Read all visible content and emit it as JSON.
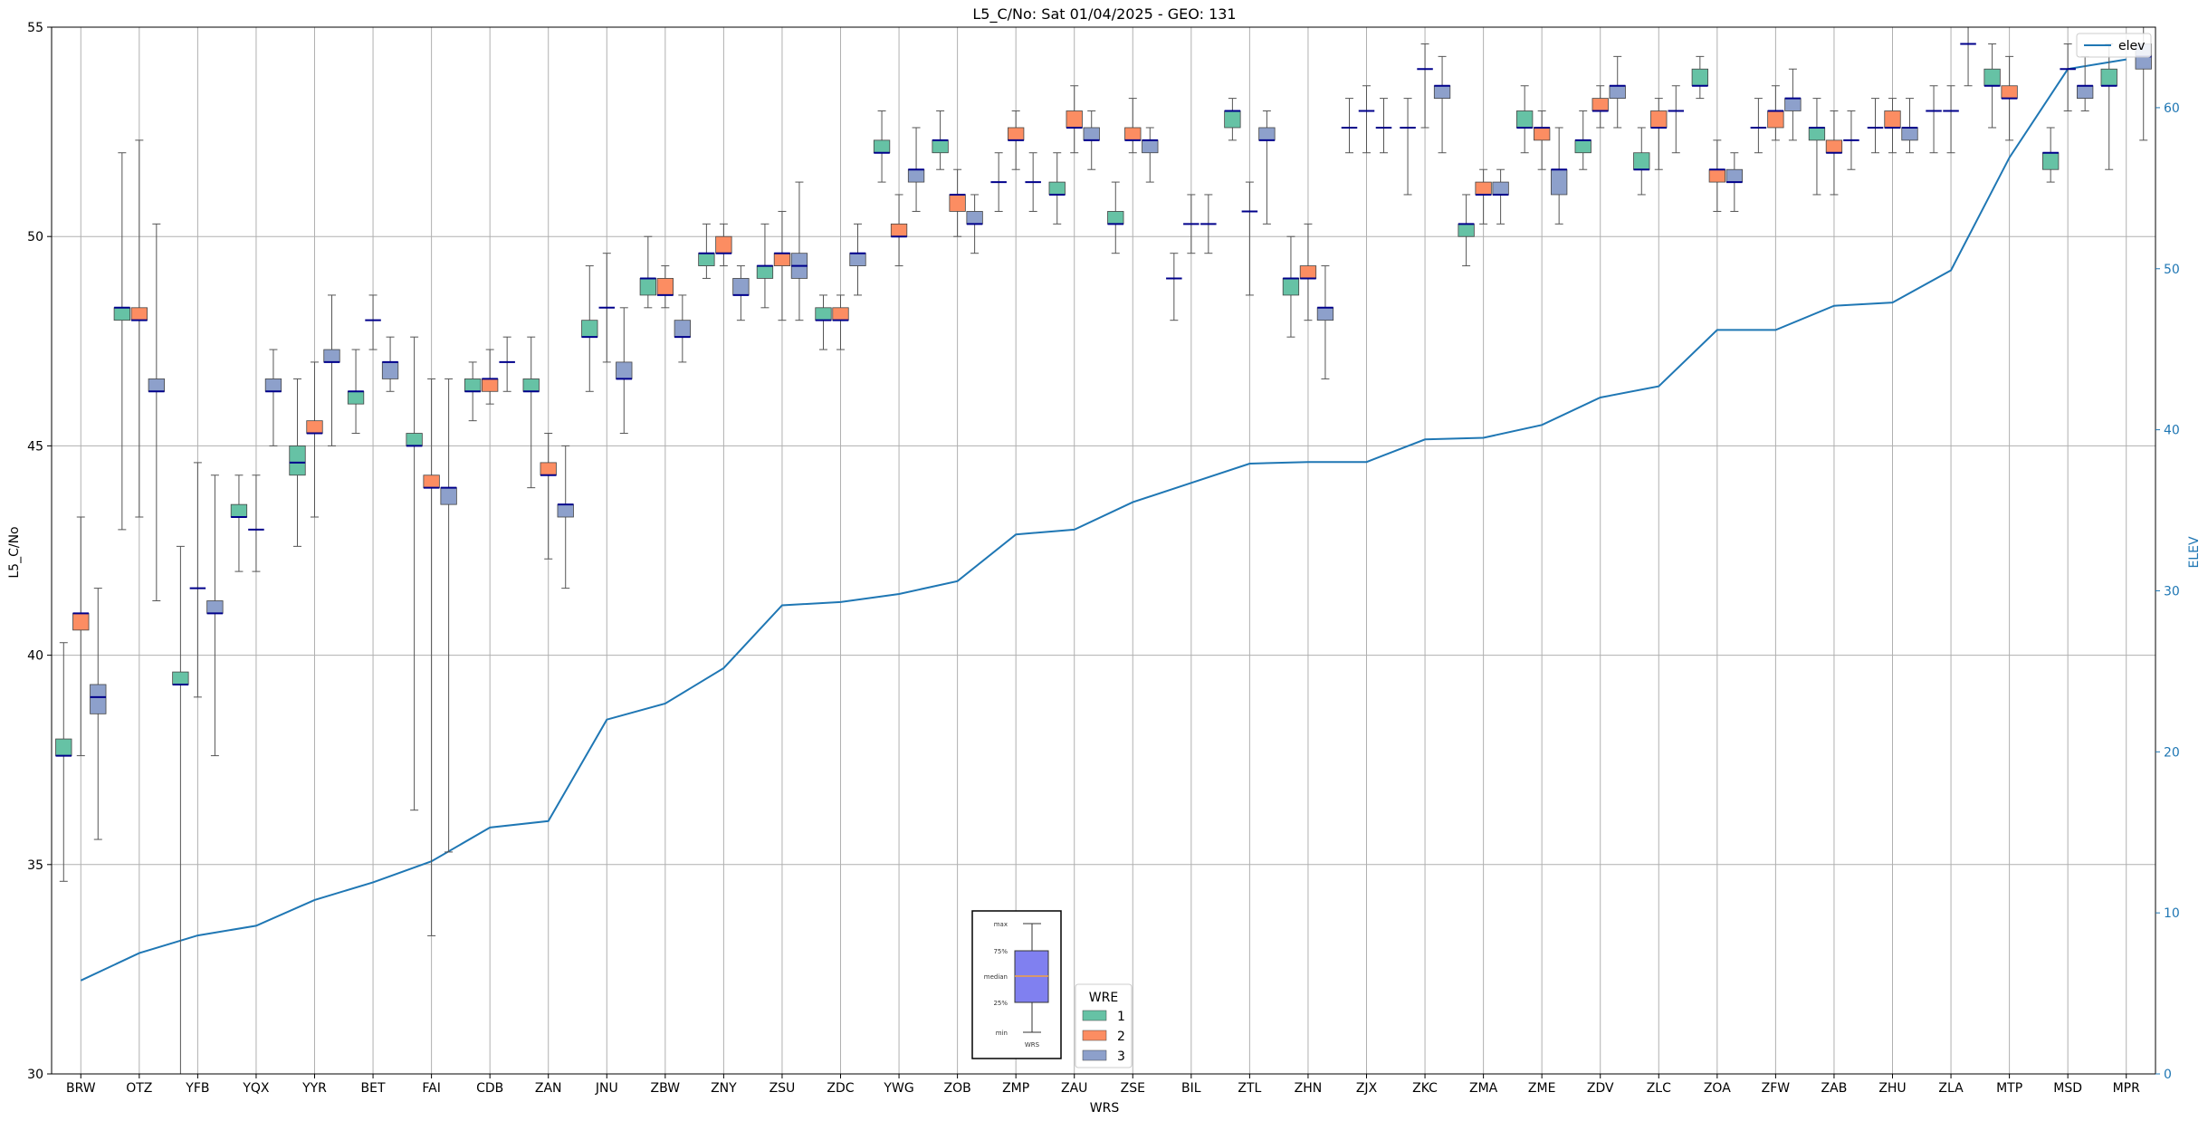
{
  "chart_data": {
    "type": "box",
    "title": "L5_C/No: Sat 01/04/2025 - GEO: 131",
    "xlabel": "WRS",
    "ylabel": "L5_C/No",
    "y2label": "ELEV",
    "ylim": [
      30,
      55
    ],
    "y2lim": [
      0,
      65
    ],
    "yticks": [
      30,
      35,
      40,
      45,
      50,
      55
    ],
    "y2ticks": [
      0,
      10,
      20,
      30,
      40,
      50,
      60
    ],
    "grid": true,
    "wre_colors": {
      "1": "#66c2a5",
      "2": "#fc8d62",
      "3": "#8da0cb"
    },
    "median_color": "#00008b",
    "elev_color": "#1f77b4",
    "legend_elev": {
      "label": "elev",
      "position": "top-right"
    },
    "legend_wre": {
      "title": "WRE",
      "labels": [
        "1",
        "2",
        "3"
      ],
      "position": "bottom-center"
    },
    "inset": {
      "labels": [
        "max",
        "75%",
        "median",
        "25%",
        "min"
      ],
      "xlabel": "WRS",
      "fill": "#8080f0"
    },
    "categories": [
      "BRW",
      "OTZ",
      "YFB",
      "YQX",
      "YYR",
      "BET",
      "FAI",
      "CDB",
      "ZAN",
      "JNU",
      "ZBW",
      "ZNY",
      "ZSU",
      "ZDC",
      "YWG",
      "ZOB",
      "ZMP",
      "ZAU",
      "ZSE",
      "BIL",
      "ZTL",
      "ZHN",
      "ZJX",
      "ZKC",
      "ZMA",
      "ZME",
      "ZDV",
      "ZLC",
      "ZOA",
      "ZFW",
      "ZAB",
      "ZHU",
      "ZLA",
      "MTP",
      "MSD",
      "MPR"
    ],
    "elev": [
      5.8,
      7.5,
      8.6,
      9.2,
      10.8,
      11.9,
      13.2,
      15.3,
      15.7,
      22.0,
      23.0,
      25.2,
      29.1,
      29.3,
      29.8,
      30.6,
      33.5,
      33.8,
      35.5,
      36.7,
      37.9,
      38.0,
      38.0,
      39.4,
      39.5,
      40.3,
      42.0,
      42.7,
      46.2,
      46.2,
      47.7,
      47.9,
      49.9,
      56.9,
      62.4,
      63.0
    ],
    "boxes": [
      {
        "wrs": "BRW",
        "wre": 1,
        "min": 34.6,
        "q1": 37.6,
        "median": 37.6,
        "q3": 38.0,
        "max": 40.3
      },
      {
        "wrs": "BRW",
        "wre": 2,
        "min": 37.6,
        "q1": 40.6,
        "median": 41.0,
        "q3": 41.0,
        "max": 43.3
      },
      {
        "wrs": "BRW",
        "wre": 3,
        "min": 35.6,
        "q1": 38.6,
        "median": 39.0,
        "q3": 39.3,
        "max": 41.6
      },
      {
        "wrs": "OTZ",
        "wre": 1,
        "min": 43.0,
        "q1": 48.0,
        "median": 48.3,
        "q3": 48.3,
        "max": 52.0
      },
      {
        "wrs": "OTZ",
        "wre": 2,
        "min": 43.3,
        "q1": 48.0,
        "median": 48.0,
        "q3": 48.3,
        "max": 52.3
      },
      {
        "wrs": "OTZ",
        "wre": 3,
        "min": 41.3,
        "q1": 46.3,
        "median": 46.3,
        "q3": 46.6,
        "max": 50.3
      },
      {
        "wrs": "YFB",
        "wre": 1,
        "min": 30.0,
        "q1": 39.3,
        "median": 39.3,
        "q3": 39.6,
        "max": 42.6
      },
      {
        "wrs": "YFB",
        "wre": 2,
        "min": 39.0,
        "q1": 41.6,
        "median": 41.6,
        "q3": 41.6,
        "max": 44.6
      },
      {
        "wrs": "YFB",
        "wre": 3,
        "min": 37.6,
        "q1": 41.0,
        "median": 41.0,
        "q3": 41.3,
        "max": 44.3
      },
      {
        "wrs": "YQX",
        "wre": 1,
        "min": 42.0,
        "q1": 43.3,
        "median": 43.3,
        "q3": 43.6,
        "max": 44.3
      },
      {
        "wrs": "YQX",
        "wre": 2,
        "min": 42.0,
        "q1": 43.0,
        "median": 43.0,
        "q3": 43.0,
        "max": 44.3
      },
      {
        "wrs": "YQX",
        "wre": 3,
        "min": 45.0,
        "q1": 46.3,
        "median": 46.3,
        "q3": 46.6,
        "max": 47.3
      },
      {
        "wrs": "YYR",
        "wre": 1,
        "min": 42.6,
        "q1": 44.3,
        "median": 44.6,
        "q3": 45.0,
        "max": 46.6
      },
      {
        "wrs": "YYR",
        "wre": 2,
        "min": 43.3,
        "q1": 45.3,
        "median": 45.3,
        "q3": 45.6,
        "max": 47.0
      },
      {
        "wrs": "YYR",
        "wre": 3,
        "min": 45.0,
        "q1": 47.0,
        "median": 47.0,
        "q3": 47.3,
        "max": 48.6
      },
      {
        "wrs": "BET",
        "wre": 1,
        "min": 45.3,
        "q1": 46.0,
        "median": 46.3,
        "q3": 46.3,
        "max": 47.3
      },
      {
        "wrs": "BET",
        "wre": 2,
        "min": 47.3,
        "q1": 48.0,
        "median": 48.0,
        "q3": 48.0,
        "max": 48.6
      },
      {
        "wrs": "BET",
        "wre": 3,
        "min": 46.3,
        "q1": 46.6,
        "median": 47.0,
        "q3": 47.0,
        "max": 47.6
      },
      {
        "wrs": "FAI",
        "wre": 1,
        "min": 36.3,
        "q1": 45.0,
        "median": 45.0,
        "q3": 45.3,
        "max": 47.6
      },
      {
        "wrs": "FAI",
        "wre": 2,
        "min": 33.3,
        "q1": 44.0,
        "median": 44.0,
        "q3": 44.3,
        "max": 46.6
      },
      {
        "wrs": "FAI",
        "wre": 3,
        "min": 35.3,
        "q1": 43.6,
        "median": 44.0,
        "q3": 44.0,
        "max": 46.6
      },
      {
        "wrs": "CDB",
        "wre": 1,
        "min": 45.6,
        "q1": 46.3,
        "median": 46.3,
        "q3": 46.6,
        "max": 47.0
      },
      {
        "wrs": "CDB",
        "wre": 2,
        "min": 46.0,
        "q1": 46.3,
        "median": 46.6,
        "q3": 46.6,
        "max": 47.3
      },
      {
        "wrs": "CDB",
        "wre": 3,
        "min": 46.3,
        "q1": 47.0,
        "median": 47.0,
        "q3": 47.0,
        "max": 47.6
      },
      {
        "wrs": "ZAN",
        "wre": 1,
        "min": 44.0,
        "q1": 46.3,
        "median": 46.3,
        "q3": 46.6,
        "max": 47.6
      },
      {
        "wrs": "ZAN",
        "wre": 2,
        "min": 42.3,
        "q1": 44.3,
        "median": 44.3,
        "q3": 44.6,
        "max": 45.3
      },
      {
        "wrs": "ZAN",
        "wre": 3,
        "min": 41.6,
        "q1": 43.3,
        "median": 43.6,
        "q3": 43.6,
        "max": 45.0
      },
      {
        "wrs": "JNU",
        "wre": 1,
        "min": 46.3,
        "q1": 47.6,
        "median": 47.6,
        "q3": 48.0,
        "max": 49.3
      },
      {
        "wrs": "JNU",
        "wre": 2,
        "min": 47.0,
        "q1": 48.3,
        "median": 48.3,
        "q3": 48.3,
        "max": 49.6
      },
      {
        "wrs": "JNU",
        "wre": 3,
        "min": 45.3,
        "q1": 46.6,
        "median": 46.6,
        "q3": 47.0,
        "max": 48.3
      },
      {
        "wrs": "ZBW",
        "wre": 1,
        "min": 48.3,
        "q1": 48.6,
        "median": 49.0,
        "q3": 49.0,
        "max": 50.0
      },
      {
        "wrs": "ZBW",
        "wre": 2,
        "min": 48.3,
        "q1": 48.6,
        "median": 48.6,
        "q3": 49.0,
        "max": 49.3
      },
      {
        "wrs": "ZBW",
        "wre": 3,
        "min": 47.0,
        "q1": 47.6,
        "median": 47.6,
        "q3": 48.0,
        "max": 48.6
      },
      {
        "wrs": "ZNY",
        "wre": 1,
        "min": 49.0,
        "q1": 49.3,
        "median": 49.6,
        "q3": 49.6,
        "max": 50.3
      },
      {
        "wrs": "ZNY",
        "wre": 2,
        "min": 49.3,
        "q1": 49.6,
        "median": 49.6,
        "q3": 50.0,
        "max": 50.3
      },
      {
        "wrs": "ZNY",
        "wre": 3,
        "min": 48.0,
        "q1": 48.6,
        "median": 48.6,
        "q3": 49.0,
        "max": 49.3
      },
      {
        "wrs": "ZSU",
        "wre": 1,
        "min": 48.3,
        "q1": 49.0,
        "median": 49.3,
        "q3": 49.3,
        "max": 50.3
      },
      {
        "wrs": "ZSU",
        "wre": 2,
        "min": 48.0,
        "q1": 49.3,
        "median": 49.6,
        "q3": 49.6,
        "max": 50.6
      },
      {
        "wrs": "ZSU",
        "wre": 3,
        "min": 48.0,
        "q1": 49.0,
        "median": 49.3,
        "q3": 49.6,
        "max": 51.3
      },
      {
        "wrs": "ZDC",
        "wre": 1,
        "min": 47.3,
        "q1": 48.0,
        "median": 48.0,
        "q3": 48.3,
        "max": 48.6
      },
      {
        "wrs": "ZDC",
        "wre": 2,
        "min": 47.3,
        "q1": 48.0,
        "median": 48.0,
        "q3": 48.3,
        "max": 48.6
      },
      {
        "wrs": "ZDC",
        "wre": 3,
        "min": 48.6,
        "q1": 49.3,
        "median": 49.6,
        "q3": 49.6,
        "max": 50.3
      },
      {
        "wrs": "YWG",
        "wre": 1,
        "min": 51.3,
        "q1": 52.0,
        "median": 52.0,
        "q3": 52.3,
        "max": 53.0
      },
      {
        "wrs": "YWG",
        "wre": 2,
        "min": 49.3,
        "q1": 50.0,
        "median": 50.0,
        "q3": 50.3,
        "max": 51.0
      },
      {
        "wrs": "YWG",
        "wre": 3,
        "min": 50.6,
        "q1": 51.3,
        "median": 51.6,
        "q3": 51.6,
        "max": 52.6
      },
      {
        "wrs": "ZOB",
        "wre": 1,
        "min": 51.6,
        "q1": 52.0,
        "median": 52.3,
        "q3": 52.3,
        "max": 53.0
      },
      {
        "wrs": "ZOB",
        "wre": 2,
        "min": 50.0,
        "q1": 50.6,
        "median": 51.0,
        "q3": 51.0,
        "max": 51.6
      },
      {
        "wrs": "ZOB",
        "wre": 3,
        "min": 49.6,
        "q1": 50.3,
        "median": 50.3,
        "q3": 50.6,
        "max": 51.0
      },
      {
        "wrs": "ZMP",
        "wre": 1,
        "min": 50.6,
        "q1": 51.3,
        "median": 51.3,
        "q3": 51.3,
        "max": 52.0
      },
      {
        "wrs": "ZMP",
        "wre": 2,
        "min": 51.6,
        "q1": 52.3,
        "median": 52.3,
        "q3": 52.6,
        "max": 53.0
      },
      {
        "wrs": "ZMP",
        "wre": 3,
        "min": 50.6,
        "q1": 51.3,
        "median": 51.3,
        "q3": 51.3,
        "max": 52.0
      },
      {
        "wrs": "ZAU",
        "wre": 1,
        "min": 50.3,
        "q1": 51.0,
        "median": 51.0,
        "q3": 51.3,
        "max": 52.0
      },
      {
        "wrs": "ZAU",
        "wre": 2,
        "min": 52.0,
        "q1": 52.6,
        "median": 52.6,
        "q3": 53.0,
        "max": 53.6
      },
      {
        "wrs": "ZAU",
        "wre": 3,
        "min": 51.6,
        "q1": 52.3,
        "median": 52.3,
        "q3": 52.6,
        "max": 53.0
      },
      {
        "wrs": "ZSE",
        "wre": 1,
        "min": 49.6,
        "q1": 50.3,
        "median": 50.3,
        "q3": 50.6,
        "max": 51.3
      },
      {
        "wrs": "ZSE",
        "wre": 2,
        "min": 52.0,
        "q1": 52.3,
        "median": 52.3,
        "q3": 52.6,
        "max": 53.3
      },
      {
        "wrs": "ZSE",
        "wre": 3,
        "min": 51.3,
        "q1": 52.0,
        "median": 52.3,
        "q3": 52.3,
        "max": 52.6
      },
      {
        "wrs": "BIL",
        "wre": 1,
        "min": 48.0,
        "q1": 49.0,
        "median": 49.0,
        "q3": 49.0,
        "max": 49.6
      },
      {
        "wrs": "BIL",
        "wre": 2,
        "min": 49.6,
        "q1": 50.3,
        "median": 50.3,
        "q3": 50.3,
        "max": 51.0
      },
      {
        "wrs": "BIL",
        "wre": 3,
        "min": 49.6,
        "q1": 50.3,
        "median": 50.3,
        "q3": 50.3,
        "max": 51.0
      },
      {
        "wrs": "ZTL",
        "wre": 1,
        "min": 52.3,
        "q1": 52.6,
        "median": 53.0,
        "q3": 53.0,
        "max": 53.3
      },
      {
        "wrs": "ZTL",
        "wre": 2,
        "min": 48.6,
        "q1": 50.6,
        "median": 50.6,
        "q3": 50.6,
        "max": 51.3
      },
      {
        "wrs": "ZTL",
        "wre": 3,
        "min": 50.3,
        "q1": 52.3,
        "median": 52.3,
        "q3": 52.6,
        "max": 53.0
      },
      {
        "wrs": "ZHN",
        "wre": 1,
        "min": 47.6,
        "q1": 48.6,
        "median": 49.0,
        "q3": 49.0,
        "max": 50.0
      },
      {
        "wrs": "ZHN",
        "wre": 2,
        "min": 48.0,
        "q1": 49.0,
        "median": 49.0,
        "q3": 49.3,
        "max": 50.3
      },
      {
        "wrs": "ZHN",
        "wre": 3,
        "min": 46.6,
        "q1": 48.0,
        "median": 48.3,
        "q3": 48.3,
        "max": 49.3
      },
      {
        "wrs": "ZJX",
        "wre": 1,
        "min": 52.0,
        "q1": 52.6,
        "median": 52.6,
        "q3": 52.6,
        "max": 53.3
      },
      {
        "wrs": "ZJX",
        "wre": 2,
        "min": 52.0,
        "q1": 53.0,
        "median": 53.0,
        "q3": 53.0,
        "max": 53.6
      },
      {
        "wrs": "ZJX",
        "wre": 3,
        "min": 52.0,
        "q1": 52.6,
        "median": 52.6,
        "q3": 52.6,
        "max": 53.3
      },
      {
        "wrs": "ZKC",
        "wre": 1,
        "min": 51.0,
        "q1": 52.6,
        "median": 52.6,
        "q3": 52.6,
        "max": 53.3
      },
      {
        "wrs": "ZKC",
        "wre": 2,
        "min": 52.6,
        "q1": 54.0,
        "median": 54.0,
        "q3": 54.0,
        "max": 54.6
      },
      {
        "wrs": "ZKC",
        "wre": 3,
        "min": 52.0,
        "q1": 53.3,
        "median": 53.6,
        "q3": 53.6,
        "max": 54.3
      },
      {
        "wrs": "ZMA",
        "wre": 1,
        "min": 49.3,
        "q1": 50.0,
        "median": 50.3,
        "q3": 50.3,
        "max": 51.0
      },
      {
        "wrs": "ZMA",
        "wre": 2,
        "min": 50.3,
        "q1": 51.0,
        "median": 51.0,
        "q3": 51.3,
        "max": 51.6
      },
      {
        "wrs": "ZMA",
        "wre": 3,
        "min": 50.3,
        "q1": 51.0,
        "median": 51.0,
        "q3": 51.3,
        "max": 51.6
      },
      {
        "wrs": "ZME",
        "wre": 1,
        "min": 52.0,
        "q1": 52.6,
        "median": 52.6,
        "q3": 53.0,
        "max": 53.6
      },
      {
        "wrs": "ZME",
        "wre": 2,
        "min": 51.6,
        "q1": 52.3,
        "median": 52.6,
        "q3": 52.6,
        "max": 53.0
      },
      {
        "wrs": "ZME",
        "wre": 3,
        "min": 50.3,
        "q1": 51.0,
        "median": 51.6,
        "q3": 51.6,
        "max": 52.6
      },
      {
        "wrs": "ZDV",
        "wre": 1,
        "min": 51.6,
        "q1": 52.0,
        "median": 52.3,
        "q3": 52.3,
        "max": 53.0
      },
      {
        "wrs": "ZDV",
        "wre": 2,
        "min": 52.6,
        "q1": 53.0,
        "median": 53.0,
        "q3": 53.3,
        "max": 53.6
      },
      {
        "wrs": "ZDV",
        "wre": 3,
        "min": 52.6,
        "q1": 53.3,
        "median": 53.6,
        "q3": 53.6,
        "max": 54.3
      },
      {
        "wrs": "ZLC",
        "wre": 1,
        "min": 51.0,
        "q1": 51.6,
        "median": 51.6,
        "q3": 52.0,
        "max": 52.6
      },
      {
        "wrs": "ZLC",
        "wre": 2,
        "min": 51.6,
        "q1": 52.6,
        "median": 52.6,
        "q3": 53.0,
        "max": 53.3
      },
      {
        "wrs": "ZLC",
        "wre": 3,
        "min": 52.0,
        "q1": 53.0,
        "median": 53.0,
        "q3": 53.0,
        "max": 53.6
      },
      {
        "wrs": "ZOA",
        "wre": 1,
        "min": 53.3,
        "q1": 53.6,
        "median": 53.6,
        "q3": 54.0,
        "max": 54.3
      },
      {
        "wrs": "ZOA",
        "wre": 2,
        "min": 50.6,
        "q1": 51.3,
        "median": 51.6,
        "q3": 51.6,
        "max": 52.3
      },
      {
        "wrs": "ZOA",
        "wre": 3,
        "min": 50.6,
        "q1": 51.3,
        "median": 51.3,
        "q3": 51.6,
        "max": 52.0
      },
      {
        "wrs": "ZFW",
        "wre": 1,
        "min": 52.0,
        "q1": 52.6,
        "median": 52.6,
        "q3": 52.6,
        "max": 53.3
      },
      {
        "wrs": "ZFW",
        "wre": 2,
        "min": 52.3,
        "q1": 52.6,
        "median": 53.0,
        "q3": 53.0,
        "max": 53.6
      },
      {
        "wrs": "ZFW",
        "wre": 3,
        "min": 52.3,
        "q1": 53.0,
        "median": 53.3,
        "q3": 53.3,
        "max": 54.0
      },
      {
        "wrs": "ZAB",
        "wre": 1,
        "min": 51.0,
        "q1": 52.3,
        "median": 52.6,
        "q3": 52.6,
        "max": 53.3
      },
      {
        "wrs": "ZAB",
        "wre": 2,
        "min": 51.0,
        "q1": 52.0,
        "median": 52.0,
        "q3": 52.3,
        "max": 53.0
      },
      {
        "wrs": "ZAB",
        "wre": 3,
        "min": 51.6,
        "q1": 52.3,
        "median": 52.3,
        "q3": 52.3,
        "max": 53.0
      },
      {
        "wrs": "ZHU",
        "wre": 1,
        "min": 52.0,
        "q1": 52.6,
        "median": 52.6,
        "q3": 52.6,
        "max": 53.3
      },
      {
        "wrs": "ZHU",
        "wre": 2,
        "min": 52.0,
        "q1": 52.6,
        "median": 52.6,
        "q3": 53.0,
        "max": 53.3
      },
      {
        "wrs": "ZHU",
        "wre": 3,
        "min": 52.0,
        "q1": 52.3,
        "median": 52.6,
        "q3": 52.6,
        "max": 53.3
      },
      {
        "wrs": "ZLA",
        "wre": 1,
        "min": 52.0,
        "q1": 53.0,
        "median": 53.0,
        "q3": 53.0,
        "max": 53.6
      },
      {
        "wrs": "ZLA",
        "wre": 2,
        "min": 52.0,
        "q1": 53.0,
        "median": 53.0,
        "q3": 53.0,
        "max": 53.6
      },
      {
        "wrs": "ZLA",
        "wre": 3,
        "min": 53.6,
        "q1": 54.6,
        "median": 54.6,
        "q3": 54.6,
        "max": 55.0
      },
      {
        "wrs": "MTP",
        "wre": 1,
        "min": 52.6,
        "q1": 53.6,
        "median": 53.6,
        "q3": 54.0,
        "max": 54.6
      },
      {
        "wrs": "MTP",
        "wre": 2,
        "min": 52.3,
        "q1": 53.3,
        "median": 53.3,
        "q3": 53.6,
        "max": 54.3
      },
      {
        "wrs": "MSD",
        "wre": 1,
        "min": 51.3,
        "q1": 51.6,
        "median": 52.0,
        "q3": 52.0,
        "max": 52.6
      },
      {
        "wrs": "MSD",
        "wre": 2,
        "min": 53.0,
        "q1": 54.0,
        "median": 54.0,
        "q3": 54.0,
        "max": 54.6
      },
      {
        "wrs": "MSD",
        "wre": 3,
        "min": 53.0,
        "q1": 53.3,
        "median": 53.6,
        "q3": 53.6,
        "max": 54.3
      },
      {
        "wrs": "MPR",
        "wre": 1,
        "min": 51.6,
        "q1": 53.6,
        "median": 53.6,
        "q3": 54.0,
        "max": 54.6
      },
      {
        "wrs": "MPR",
        "wre": 3,
        "min": 52.3,
        "q1": 54.0,
        "median": 54.3,
        "q3": 54.6,
        "max": 55.0
      }
    ]
  }
}
